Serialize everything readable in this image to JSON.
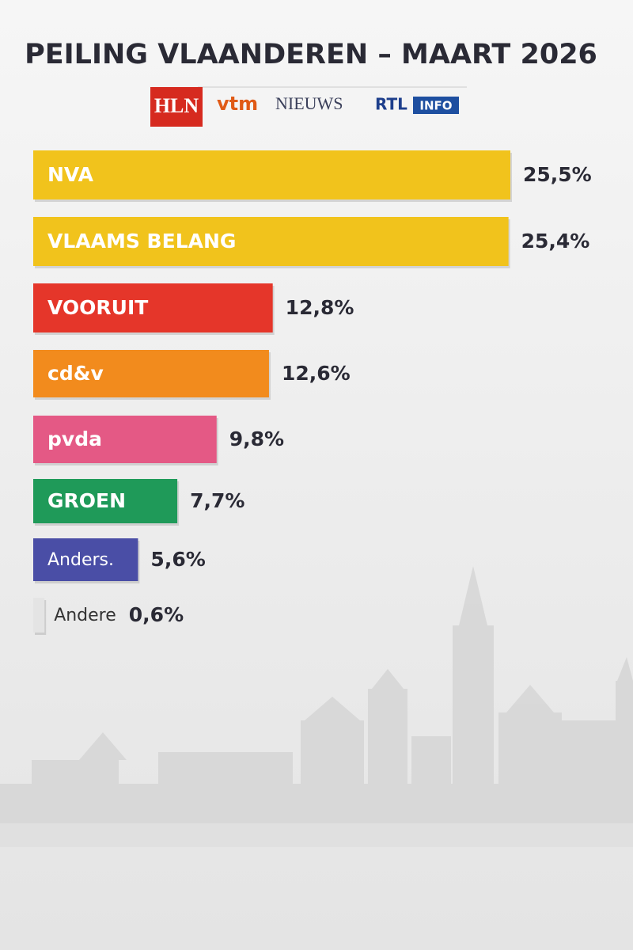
{
  "chart_data": {
    "type": "hbar",
    "title": "PEILING VLAANDEREN – MAART 2026",
    "sources": [
      "HLN",
      "vtm",
      "NIEUWS",
      "RTL",
      "INFO"
    ],
    "categories": [
      "NVA",
      "VLAAMS BELANG",
      "VOORUIT",
      "cd&v",
      "pvda",
      "GROEN",
      "Anders.",
      "Andere"
    ],
    "values": [
      25.5,
      25.4,
      12.8,
      12.6,
      9.8,
      7.7,
      5.6,
      0.6
    ],
    "value_labels": [
      "25,5%",
      "25,4%",
      "12,8%",
      "12,6%",
      "9,8%",
      "7,7%",
      "5,6%",
      "0,6%"
    ],
    "colors": [
      "#f1c31c",
      "#f1c31c",
      "#e5362a",
      "#f28b1d",
      "#e45985",
      "#1f9a59",
      "#4a4ea6",
      "#e4e4e4"
    ]
  }
}
